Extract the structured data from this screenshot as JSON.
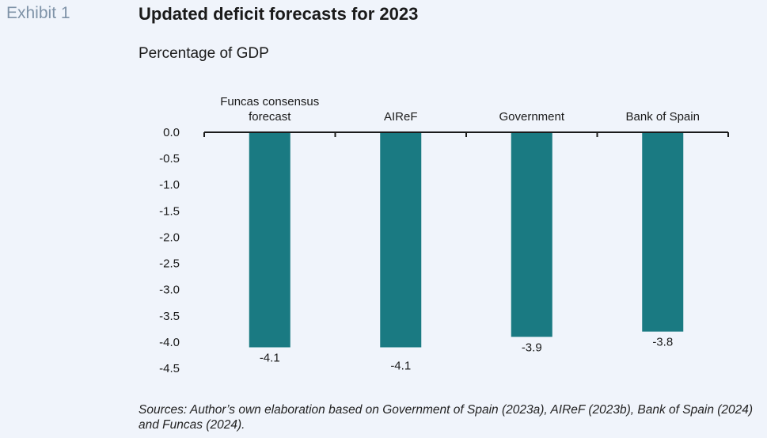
{
  "header": {
    "exhibit": "Exhibit 1",
    "title": "Updated deficit forecasts for 2023",
    "subtitle": "Percentage of GDP"
  },
  "footer": {
    "source": "Sources: Author’s own elaboration based on Government of Spain (2023a), AIReF (2023b), Bank of Spain (2024) and Funcas (2024)."
  },
  "colors": {
    "bar": "#1a7a82",
    "axis": "#1a1a1a"
  },
  "chart_data": {
    "type": "bar",
    "categories": [
      [
        "Funcas consensus",
        "forecast"
      ],
      [
        "AIReF"
      ],
      [
        "Government"
      ],
      [
        "Bank of Spain"
      ]
    ],
    "values": [
      -4.1,
      -4.1,
      -3.9,
      -3.8
    ],
    "data_labels": [
      "-4.1",
      "-4.1",
      "-3.9",
      "-3.8"
    ],
    "yticks": [
      "0.0",
      "-0.5",
      "-1.0",
      "-1.5",
      "-2.0",
      "-2.5",
      "-3.0",
      "-3.5",
      "-4.0",
      "-4.5"
    ],
    "ylim": [
      -4.5,
      0
    ],
    "grid": false,
    "legend": "none"
  }
}
